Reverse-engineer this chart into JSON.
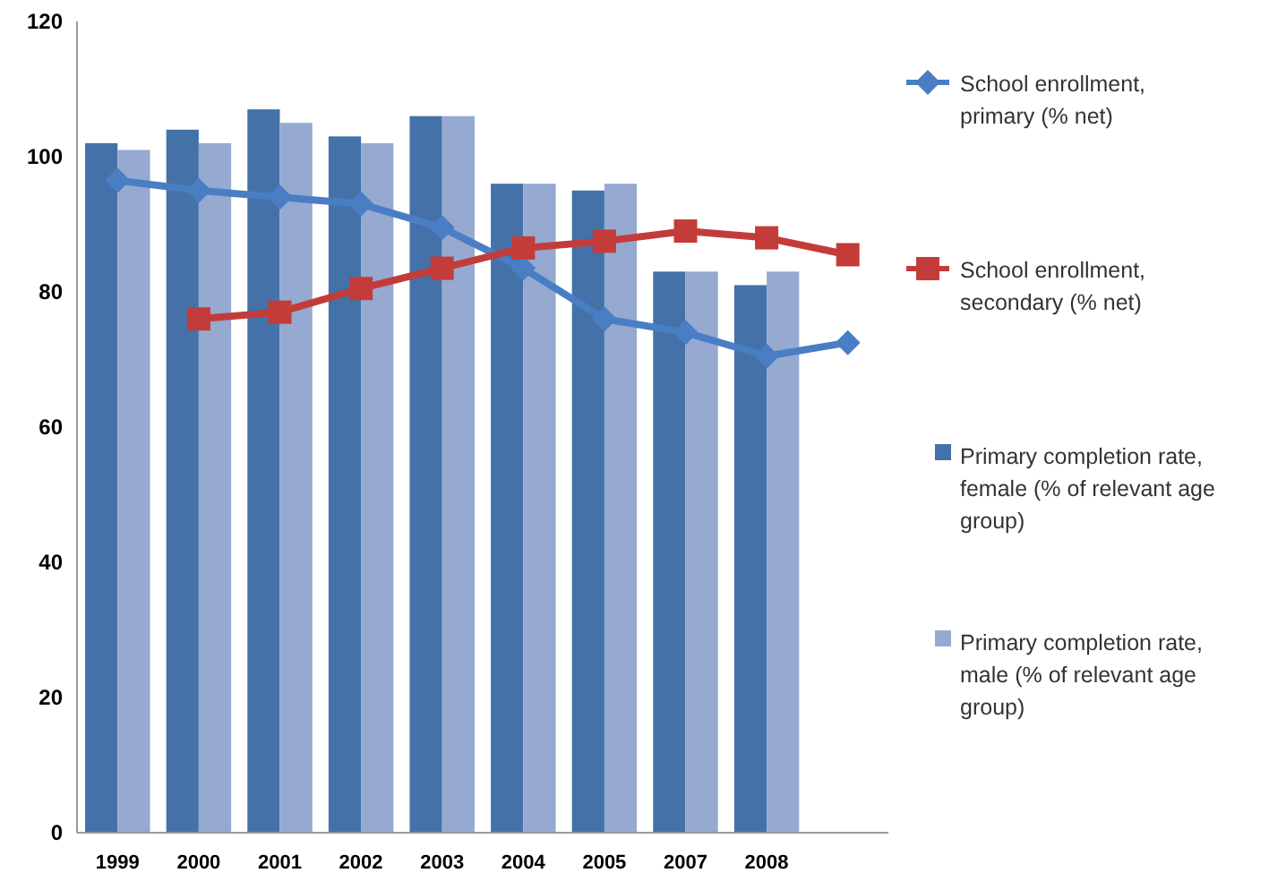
{
  "chart_data": {
    "type": "bar",
    "categories": [
      "1999",
      "2000",
      "2001",
      "2002",
      "2003",
      "2004",
      "2005",
      "2007",
      "2008",
      null
    ],
    "series": [
      {
        "name": "School enrollment, primary (% net)",
        "type": "line",
        "marker": "diamond",
        "color": "#4a7ec4",
        "values": [
          96.5,
          95,
          94,
          93,
          89.5,
          83.5,
          76,
          74,
          70.5,
          72.5
        ]
      },
      {
        "name": "School enrollment, secondary (% net)",
        "type": "line",
        "marker": "square",
        "color": "#c43c39",
        "values": [
          null,
          76,
          77,
          80.5,
          83.5,
          86.5,
          87.5,
          89,
          88,
          85.5
        ]
      },
      {
        "name": "Primary completion rate, female (% of relevant age group)",
        "color": "#4472a8",
        "values": [
          102,
          104,
          107,
          103,
          106,
          96,
          95,
          83,
          81,
          null
        ]
      },
      {
        "name": "Primary completion rate, male (% of relevant age group)",
        "color": "#95a9d1",
        "values": [
          101,
          102,
          105,
          102,
          106,
          96,
          96,
          83,
          83,
          null
        ]
      }
    ],
    "ylim": [
      0,
      120
    ],
    "yticks": [
      0,
      20,
      40,
      60,
      80,
      100,
      120
    ],
    "grid": false,
    "legend": "right"
  }
}
